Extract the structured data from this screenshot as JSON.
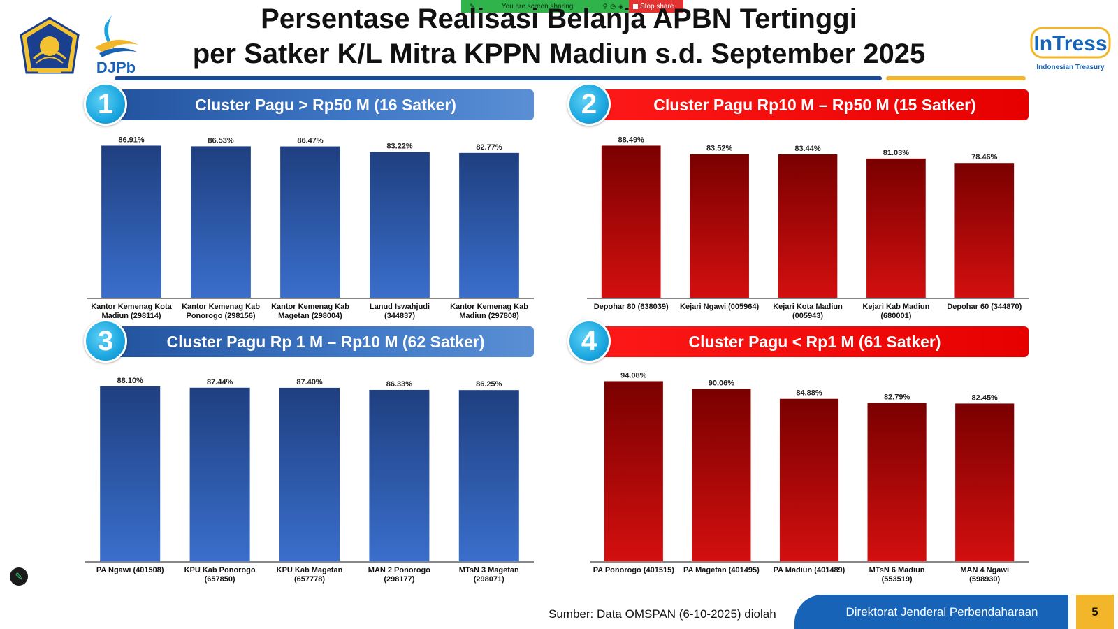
{
  "share_bar": {
    "message": "You are screen sharing",
    "stop_label": "Stop share"
  },
  "header": {
    "title_line1": "Persentase Realisasi Belanja APBN Tertinggi",
    "title_line2": "per Satker K/L Mitra KPPN Madiun s.d. September 2025",
    "left_logo_text": "DJPb",
    "right_logo_text": "InTress",
    "right_logo_subtitle": "Indonesian Treasury"
  },
  "colors": {
    "blue_bar_top": "#1f3f80",
    "blue_bar_bottom": "#3a6fcc",
    "red_bar_top": "#7a0000",
    "red_bar_bottom": "#d40f0f",
    "accent_blue": "#1763b8",
    "accent_yellow": "#f3b62a"
  },
  "chart_data": [
    {
      "type": "bar",
      "number": "1",
      "title": "Cluster Pagu > Rp50 M (16 Satker)",
      "color": "blue",
      "categories": [
        [
          "Kantor Kemenag Kota",
          "Madiun (298114)"
        ],
        [
          "Kantor Kemenag Kab",
          "Ponorogo (298156)"
        ],
        [
          "Kantor Kemenag Kab",
          "Magetan (298004)"
        ],
        [
          "Lanud Iswahjudi",
          "(344837)"
        ],
        [
          "Kantor Kemenag Kab",
          "Madiun (297808)"
        ]
      ],
      "values": [
        86.91,
        86.53,
        86.47,
        83.22,
        82.77
      ],
      "labels": [
        "86.91%",
        "86.53%",
        "86.47%",
        "83.22%",
        "82.77%"
      ],
      "ylim": [
        0,
        100
      ]
    },
    {
      "type": "bar",
      "number": "2",
      "title": "Cluster Pagu Rp10 M – Rp50 M (15 Satker)",
      "color": "red",
      "categories": [
        [
          "Depohar 80 (638039)"
        ],
        [
          "Kejari Ngawi (005964)"
        ],
        [
          "Kejari Kota Madiun",
          "(005943)"
        ],
        [
          "Kejari Kab Madiun",
          "(680001)"
        ],
        [
          "Depohar 60 (344870)"
        ]
      ],
      "values": [
        88.49,
        83.52,
        83.44,
        81.03,
        78.46
      ],
      "labels": [
        "88.49%",
        "83.52%",
        "83.44%",
        "81.03%",
        "78.46%"
      ],
      "ylim": [
        0,
        100
      ]
    },
    {
      "type": "bar",
      "number": "3",
      "title": "Cluster Pagu Rp 1 M – Rp10 M (62 Satker)",
      "color": "blue",
      "categories": [
        [
          "PA Ngawi (401508)"
        ],
        [
          "KPU Kab Ponorogo",
          "(657850)"
        ],
        [
          "KPU Kab Magetan",
          "(657778)"
        ],
        [
          "MAN 2 Ponorogo",
          "(298177)"
        ],
        [
          "MTsN 3 Magetan",
          "(298071)"
        ]
      ],
      "values": [
        88.1,
        87.44,
        87.4,
        86.33,
        86.25
      ],
      "labels": [
        "88.10%",
        "87.44%",
        "87.40%",
        "86.33%",
        "86.25%"
      ],
      "ylim": [
        0,
        100
      ]
    },
    {
      "type": "bar",
      "number": "4",
      "title": "Cluster Pagu < Rp1 M (61 Satker)",
      "color": "red",
      "categories": [
        [
          "PA Ponorogo (401515)"
        ],
        [
          "PA Magetan (401495)"
        ],
        [
          "PA Madiun (401489)"
        ],
        [
          "MTsN 6 Madiun",
          "(553519)"
        ],
        [
          "MAN 4 Ngawi",
          "(598930)"
        ]
      ],
      "values": [
        94.08,
        90.06,
        84.88,
        82.79,
        82.45
      ],
      "labels": [
        "94.08%",
        "90.06%",
        "84.88%",
        "82.79%",
        "82.45%"
      ],
      "ylim": [
        0,
        100
      ]
    }
  ],
  "footer": {
    "source": "Sumber: Data OMSPAN (6-10-2025) diolah",
    "org": "Direktorat Jenderal Perbendaharaan",
    "page": "5"
  }
}
